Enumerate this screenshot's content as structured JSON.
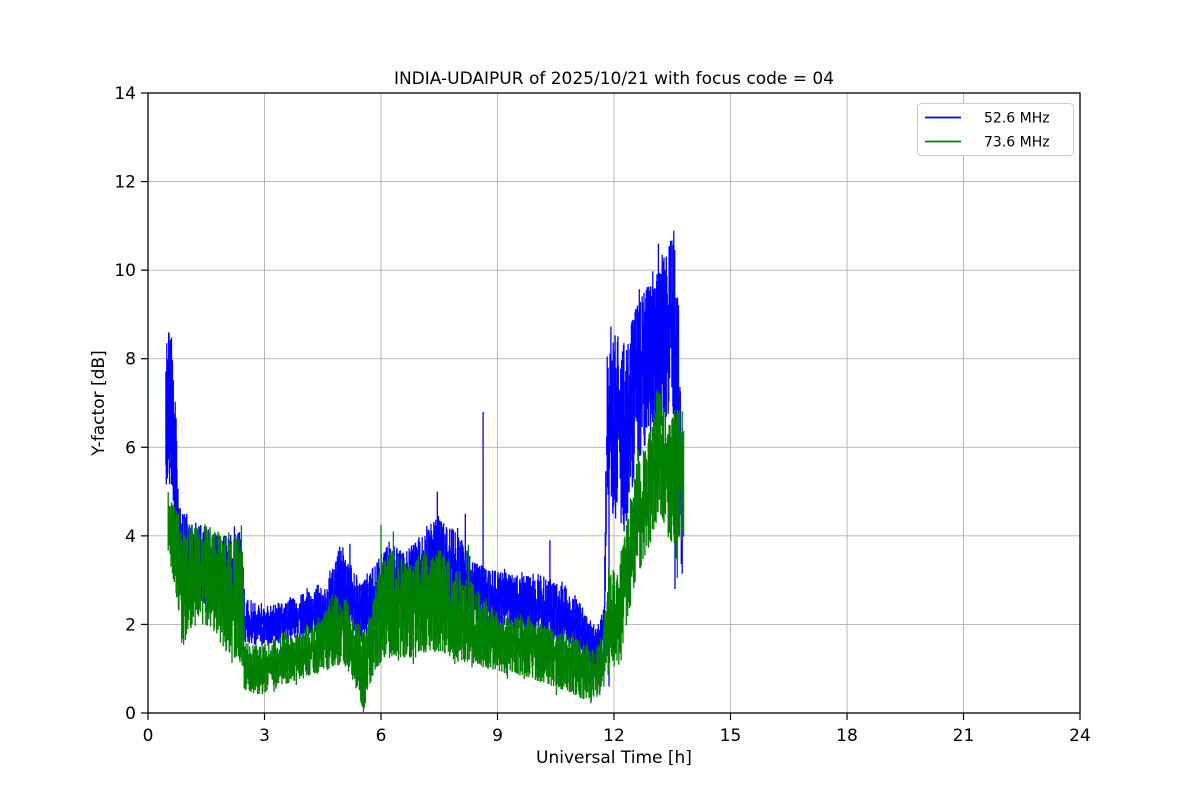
{
  "figure": {
    "background": "#ffffff",
    "frame_color": "#000000",
    "grid_color": "#b0b0b0",
    "grid_on": true
  },
  "chart_data": {
    "type": "line",
    "title": "INDIA-UDAIPUR of 2025/10/21 with focus code = 04",
    "xlabel": "Universal Time [h]",
    "ylabel": "Y-factor [dB]",
    "xlim": [
      0,
      24
    ],
    "ylim": [
      0,
      14
    ],
    "xticks": [
      0,
      3,
      6,
      9,
      12,
      15,
      18,
      21,
      24
    ],
    "yticks": [
      0,
      2,
      4,
      6,
      8,
      10,
      12,
      14
    ],
    "legend_position": "upper right",
    "series": [
      {
        "name": "52.6 MHz",
        "color": "#0000ff",
        "t_range": [
          0.46,
          13.78
        ],
        "envelope": [
          [
            0.46,
            5.0,
            8.65
          ],
          [
            0.6,
            5.2,
            8.55
          ],
          [
            0.72,
            3.6,
            6.8
          ],
          [
            0.8,
            2.8,
            4.7
          ],
          [
            1.0,
            2.6,
            4.4
          ],
          [
            1.5,
            2.4,
            4.2
          ],
          [
            2.0,
            2.2,
            4.0
          ],
          [
            2.42,
            2.0,
            4.1
          ],
          [
            2.48,
            1.6,
            2.6
          ],
          [
            3.0,
            1.5,
            2.4
          ],
          [
            3.5,
            1.6,
            2.5
          ],
          [
            4.0,
            1.7,
            2.7
          ],
          [
            4.6,
            1.8,
            2.9
          ],
          [
            4.95,
            2.0,
            3.8
          ],
          [
            5.2,
            1.9,
            3.4
          ],
          [
            5.5,
            1.6,
            2.9
          ],
          [
            5.8,
            2.0,
            3.3
          ],
          [
            6.2,
            2.2,
            3.9
          ],
          [
            6.6,
            2.2,
            3.6
          ],
          [
            7.0,
            2.3,
            4.0
          ],
          [
            7.5,
            2.4,
            4.5
          ],
          [
            7.9,
            2.2,
            4.1
          ],
          [
            8.4,
            2.1,
            3.4
          ],
          [
            9.0,
            1.9,
            3.2
          ],
          [
            9.6,
            1.8,
            3.1
          ],
          [
            10.2,
            1.7,
            3.1
          ],
          [
            10.8,
            1.5,
            2.8
          ],
          [
            11.2,
            1.2,
            2.4
          ],
          [
            11.55,
            0.8,
            1.9
          ],
          [
            11.75,
            1.3,
            2.4
          ],
          [
            11.82,
            4.5,
            8.3
          ],
          [
            12.0,
            4.4,
            8.6
          ],
          [
            12.3,
            4.2,
            8.4
          ],
          [
            12.55,
            5.5,
            9.1
          ],
          [
            12.8,
            6.0,
            9.6
          ],
          [
            13.05,
            6.2,
            10.1
          ],
          [
            13.3,
            6.6,
            10.5
          ],
          [
            13.5,
            6.9,
            10.8
          ],
          [
            13.62,
            4.2,
            10.2
          ],
          [
            13.72,
            3.4,
            8.2
          ],
          [
            13.78,
            3.1,
            6.9
          ]
        ],
        "spikes_up": [
          [
            5.2,
            3.82
          ],
          [
            7.45,
            5.0
          ],
          [
            8.17,
            4.5
          ],
          [
            8.63,
            6.8
          ],
          [
            10.35,
            3.9
          ]
        ],
        "spikes_down": [
          [
            5.38,
            0.6
          ],
          [
            11.64,
            0.5
          ],
          [
            11.87,
            0.6
          ],
          [
            12.26,
            4.1
          ],
          [
            13.57,
            2.8
          ]
        ]
      },
      {
        "name": "73.6 MHz",
        "color": "#008000",
        "t_range": [
          0.52,
          13.8
        ],
        "envelope": [
          [
            0.52,
            3.6,
            5.05
          ],
          [
            0.7,
            2.8,
            4.6
          ],
          [
            0.9,
            1.5,
            4.4
          ],
          [
            1.2,
            2.1,
            4.2
          ],
          [
            1.6,
            1.9,
            4.1
          ],
          [
            2.0,
            1.4,
            4.1
          ],
          [
            2.42,
            1.1,
            4.0
          ],
          [
            2.48,
            0.5,
            1.6
          ],
          [
            2.9,
            0.4,
            1.5
          ],
          [
            3.3,
            0.6,
            1.7
          ],
          [
            3.8,
            0.7,
            1.8
          ],
          [
            4.3,
            0.9,
            2.0
          ],
          [
            4.8,
            1.0,
            2.6
          ],
          [
            5.05,
            1.1,
            2.7
          ],
          [
            5.3,
            0.7,
            2.2
          ],
          [
            5.55,
            0.05,
            1.8
          ],
          [
            5.8,
            0.9,
            2.7
          ],
          [
            6.05,
            1.2,
            3.5
          ],
          [
            6.35,
            1.3,
            3.7
          ],
          [
            6.7,
            1.2,
            3.3
          ],
          [
            7.1,
            1.3,
            3.6
          ],
          [
            7.5,
            1.4,
            3.7
          ],
          [
            7.9,
            1.2,
            3.3
          ],
          [
            8.3,
            1.1,
            3.0
          ],
          [
            8.7,
            1.0,
            2.5
          ],
          [
            9.2,
            0.9,
            2.2
          ],
          [
            9.8,
            0.8,
            2.1
          ],
          [
            10.4,
            0.6,
            1.9
          ],
          [
            11.0,
            0.4,
            1.7
          ],
          [
            11.4,
            0.2,
            1.4
          ],
          [
            11.7,
            0.5,
            1.6
          ],
          [
            11.87,
            0.9,
            3.4
          ],
          [
            12.05,
            1.1,
            3.2
          ],
          [
            12.25,
            1.6,
            3.9
          ],
          [
            12.55,
            3.0,
            5.6
          ],
          [
            12.8,
            3.5,
            6.0
          ],
          [
            13.0,
            4.0,
            6.6
          ],
          [
            13.15,
            4.5,
            7.3
          ],
          [
            13.4,
            4.1,
            6.6
          ],
          [
            13.6,
            3.4,
            6.9
          ],
          [
            13.78,
            3.9,
            6.9
          ]
        ],
        "spikes_up": [
          [
            6.0,
            4.25
          ],
          [
            6.32,
            4.1
          ],
          [
            8.25,
            3.8
          ]
        ],
        "spikes_down": [
          [
            5.55,
            0.02
          ],
          [
            13.63,
            3.05
          ]
        ]
      }
    ]
  }
}
